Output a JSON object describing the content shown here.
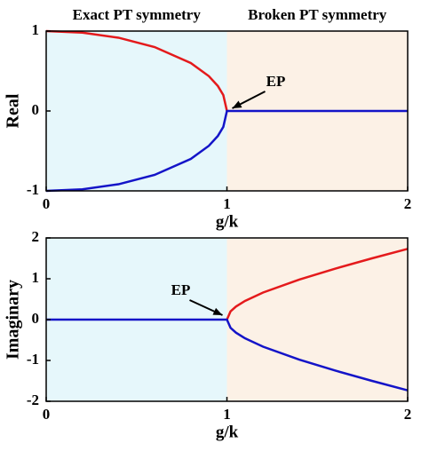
{
  "chart_data": [
    {
      "type": "line",
      "ylabel": "Real",
      "xlabel": "g/k",
      "regions": [
        {
          "label": "Exact PT symmetry",
          "from": 0,
          "to": 1,
          "color": "#e6f7fb"
        },
        {
          "label": "Broken PT symmetry",
          "from": 1,
          "to": 2,
          "color": "#fcf1e6"
        }
      ],
      "x": [
        0,
        0.2,
        0.4,
        0.6,
        0.8,
        0.9,
        0.95,
        0.98,
        1,
        1.02,
        1.05,
        1.1,
        1.2,
        1.4,
        1.6,
        1.8,
        2
      ],
      "series": [
        {
          "color": "#e41a1c",
          "values": [
            1,
            0.98,
            0.917,
            0.8,
            0.6,
            0.436,
            0.312,
            0.199,
            0,
            null,
            null,
            null,
            null,
            null,
            null,
            null,
            null
          ]
        },
        {
          "color": "#1414c8",
          "values": [
            -1,
            -0.98,
            -0.917,
            -0.8,
            -0.6,
            -0.436,
            -0.312,
            -0.199,
            0,
            0,
            0,
            0,
            0,
            0,
            0,
            0,
            0
          ]
        }
      ],
      "annotation": {
        "text": "EP",
        "x": 1,
        "y": 0
      },
      "xlim": [
        0,
        2
      ],
      "xticks": [
        0,
        1,
        2
      ],
      "ylim": [
        -1,
        1
      ],
      "yticks": [
        -1,
        0,
        1
      ]
    },
    {
      "type": "line",
      "ylabel": "Imaginary",
      "xlabel": "g/k",
      "regions": [
        {
          "from": 0,
          "to": 1,
          "color": "#e6f7fb"
        },
        {
          "from": 1,
          "to": 2,
          "color": "#fcf1e6"
        }
      ],
      "x": [
        0,
        0.2,
        0.4,
        0.6,
        0.8,
        0.9,
        0.95,
        0.98,
        1,
        1.02,
        1.05,
        1.1,
        1.2,
        1.4,
        1.6,
        1.8,
        2
      ],
      "series": [
        {
          "color": "#e41a1c",
          "values": [
            null,
            null,
            null,
            null,
            null,
            null,
            null,
            null,
            0,
            0.201,
            0.32,
            0.458,
            0.663,
            0.98,
            1.249,
            1.497,
            1.732
          ]
        },
        {
          "color": "#1414c8",
          "values": [
            0,
            0,
            0,
            0,
            0,
            0,
            0,
            0,
            0,
            -0.201,
            -0.32,
            -0.458,
            -0.663,
            -0.98,
            -1.249,
            -1.497,
            -1.732
          ]
        }
      ],
      "annotation": {
        "text": "EP",
        "x": 1,
        "y": 0
      },
      "xlim": [
        0,
        2
      ],
      "xticks": [
        0,
        1,
        2
      ],
      "ylim": [
        -2,
        2
      ],
      "yticks": [
        -2,
        -1,
        0,
        1,
        2
      ]
    }
  ]
}
